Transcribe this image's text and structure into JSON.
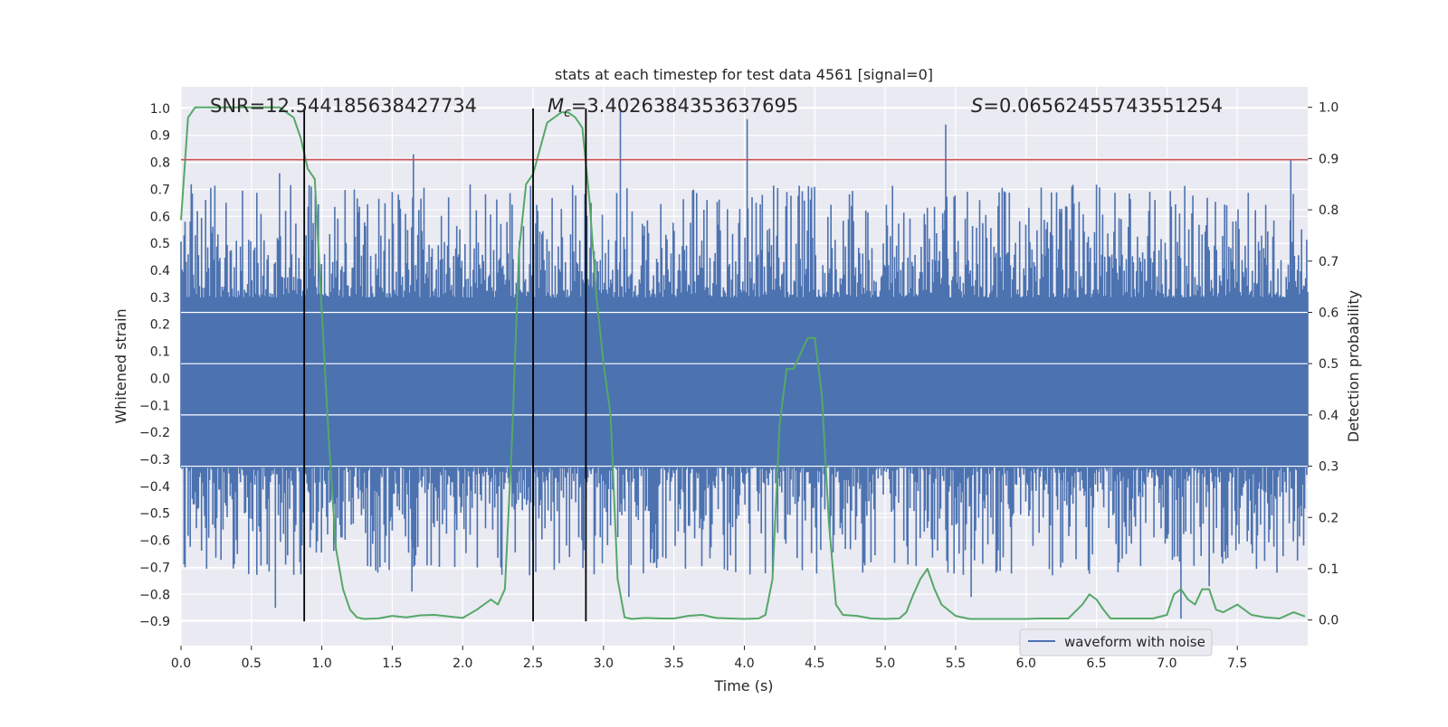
{
  "chart_data": {
    "type": "line",
    "title": "stats at each timestep for test data 4561 [signal=0]",
    "xlabel": "Time (s)",
    "ylabel_left": "Whitened strain",
    "ylabel_right": "Detection probability",
    "xlim": [
      0.0,
      8.0
    ],
    "ylim_left": [
      -0.99,
      1.08
    ],
    "ylim_right": [
      -0.05,
      1.04
    ],
    "x_ticks": [
      0.0,
      0.5,
      1.0,
      1.5,
      2.0,
      2.5,
      3.0,
      3.5,
      4.0,
      4.5,
      5.0,
      5.5,
      6.0,
      6.5,
      7.0,
      7.5
    ],
    "x_tick_labels": [
      "0.0",
      "0.5",
      "1.0",
      "1.5",
      "2.0",
      "2.5",
      "3.0",
      "3.5",
      "4.0",
      "4.5",
      "5.0",
      "5.5",
      "6.0",
      "6.5",
      "7.0",
      "7.5"
    ],
    "y_left_ticks": [
      1.0,
      0.9,
      0.8,
      0.7,
      0.6,
      0.5,
      0.4,
      0.3,
      0.2,
      0.1,
      0.0,
      -0.1,
      -0.2,
      -0.3,
      -0.4,
      -0.5,
      -0.6,
      -0.7,
      -0.8,
      -0.9
    ],
    "y_left_tick_labels": [
      "1.0",
      "0.9",
      "0.8",
      "0.7",
      "0.6",
      "0.5",
      "0.4",
      "0.3",
      "0.2",
      "0.1",
      "0.0",
      "−0.1",
      "−0.2",
      "−0.3",
      "−0.4",
      "−0.5",
      "−0.6",
      "−0.7",
      "−0.8",
      "−0.9"
    ],
    "y_right_ticks": [
      1.0,
      0.9,
      0.8,
      0.7,
      0.6,
      0.5,
      0.4,
      0.3,
      0.2,
      0.1,
      0.0
    ],
    "y_right_tick_labels": [
      "1.0",
      "0.9",
      "0.8",
      "0.7",
      "0.6",
      "0.5",
      "0.4",
      "0.3",
      "0.2",
      "0.1",
      "0.0"
    ],
    "grid": true,
    "legend": {
      "location": "lower-right",
      "entries": [
        "waveform with noise"
      ]
    },
    "annotations": {
      "snr": "SNR=12.544185638427734",
      "mc_symbol": "M",
      "mc_subscript": "c",
      "mc_value": "=3.4026384353637695",
      "s_symbol": "S",
      "s_value": "=0.06562455743551254"
    },
    "series": [
      {
        "name": "waveform with noise",
        "axis": "left",
        "color": "#4c72b0",
        "style": "dense-noise",
        "band": [
          -0.33,
          0.3
        ],
        "x_range": [
          0.0,
          8.0
        ],
        "sample_count": 1100,
        "peaks": [
          {
            "x": 0.7,
            "y": 0.76
          },
          {
            "x": 1.65,
            "y": 0.83
          },
          {
            "x": 3.12,
            "y": 1.0
          },
          {
            "x": 4.02,
            "y": 0.96
          },
          {
            "x": 5.43,
            "y": 0.94
          },
          {
            "x": 7.88,
            "y": 0.81
          },
          {
            "x": 0.67,
            "y": -0.85
          },
          {
            "x": 1.64,
            "y": -0.79
          },
          {
            "x": 3.18,
            "y": -0.81
          },
          {
            "x": 5.61,
            "y": -0.81
          },
          {
            "x": 7.1,
            "y": -0.89
          },
          {
            "x": 7.3,
            "y": -0.77
          }
        ]
      },
      {
        "name": "detection probability",
        "axis": "right",
        "color": "#55a868",
        "x": [
          0.0,
          0.05,
          0.1,
          0.2,
          0.3,
          0.4,
          0.5,
          0.6,
          0.7,
          0.8,
          0.85,
          0.9,
          0.95,
          1.0,
          1.05,
          1.1,
          1.15,
          1.2,
          1.25,
          1.3,
          1.4,
          1.5,
          1.6,
          1.7,
          1.8,
          1.9,
          2.0,
          2.1,
          2.2,
          2.25,
          2.3,
          2.35,
          2.4,
          2.45,
          2.5,
          2.55,
          2.6,
          2.65,
          2.7,
          2.75,
          2.8,
          2.85,
          2.9,
          2.95,
          3.0,
          3.05,
          3.1,
          3.15,
          3.2,
          3.3,
          3.4,
          3.5,
          3.6,
          3.7,
          3.8,
          3.9,
          4.0,
          4.1,
          4.15,
          4.2,
          4.25,
          4.3,
          4.35,
          4.4,
          4.45,
          4.5,
          4.55,
          4.6,
          4.65,
          4.7,
          4.8,
          4.9,
          5.0,
          5.1,
          5.15,
          5.2,
          5.25,
          5.3,
          5.35,
          5.4,
          5.5,
          5.6,
          5.7,
          5.8,
          5.9,
          6.0,
          6.1,
          6.2,
          6.3,
          6.4,
          6.45,
          6.5,
          6.55,
          6.6,
          6.7,
          6.8,
          6.9,
          7.0,
          7.05,
          7.1,
          7.15,
          7.2,
          7.25,
          7.3,
          7.35,
          7.4,
          7.5,
          7.6,
          7.7,
          7.8,
          7.9,
          7.98
        ],
        "y": [
          0.78,
          0.98,
          1.0,
          1.0,
          1.0,
          1.0,
          1.0,
          1.0,
          1.0,
          0.98,
          0.94,
          0.88,
          0.86,
          0.6,
          0.35,
          0.14,
          0.06,
          0.02,
          0.005,
          0.002,
          0.003,
          0.008,
          0.005,
          0.009,
          0.01,
          0.007,
          0.004,
          0.02,
          0.04,
          0.03,
          0.06,
          0.35,
          0.72,
          0.85,
          0.87,
          0.92,
          0.97,
          0.98,
          0.99,
          0.99,
          0.98,
          0.96,
          0.82,
          0.63,
          0.5,
          0.4,
          0.08,
          0.005,
          0.002,
          0.004,
          0.003,
          0.003,
          0.008,
          0.01,
          0.004,
          0.003,
          0.002,
          0.003,
          0.01,
          0.08,
          0.38,
          0.49,
          0.49,
          0.52,
          0.55,
          0.55,
          0.44,
          0.19,
          0.03,
          0.01,
          0.008,
          0.003,
          0.002,
          0.003,
          0.015,
          0.05,
          0.08,
          0.1,
          0.06,
          0.03,
          0.008,
          0.002,
          0.002,
          0.002,
          0.002,
          0.002,
          0.003,
          0.003,
          0.003,
          0.03,
          0.05,
          0.04,
          0.02,
          0.003,
          0.003,
          0.003,
          0.003,
          0.01,
          0.05,
          0.06,
          0.04,
          0.03,
          0.06,
          0.06,
          0.02,
          0.015,
          0.03,
          0.01,
          0.005,
          0.003,
          0.015,
          0.007
        ]
      }
    ],
    "threshold": {
      "axis": "left",
      "y": 0.81,
      "color": "#c44e52"
    },
    "vertical_markers": {
      "color": "#000000",
      "x": [
        0.875,
        2.5,
        2.875
      ],
      "y_from": -0.9,
      "y_to": 1.0
    }
  }
}
